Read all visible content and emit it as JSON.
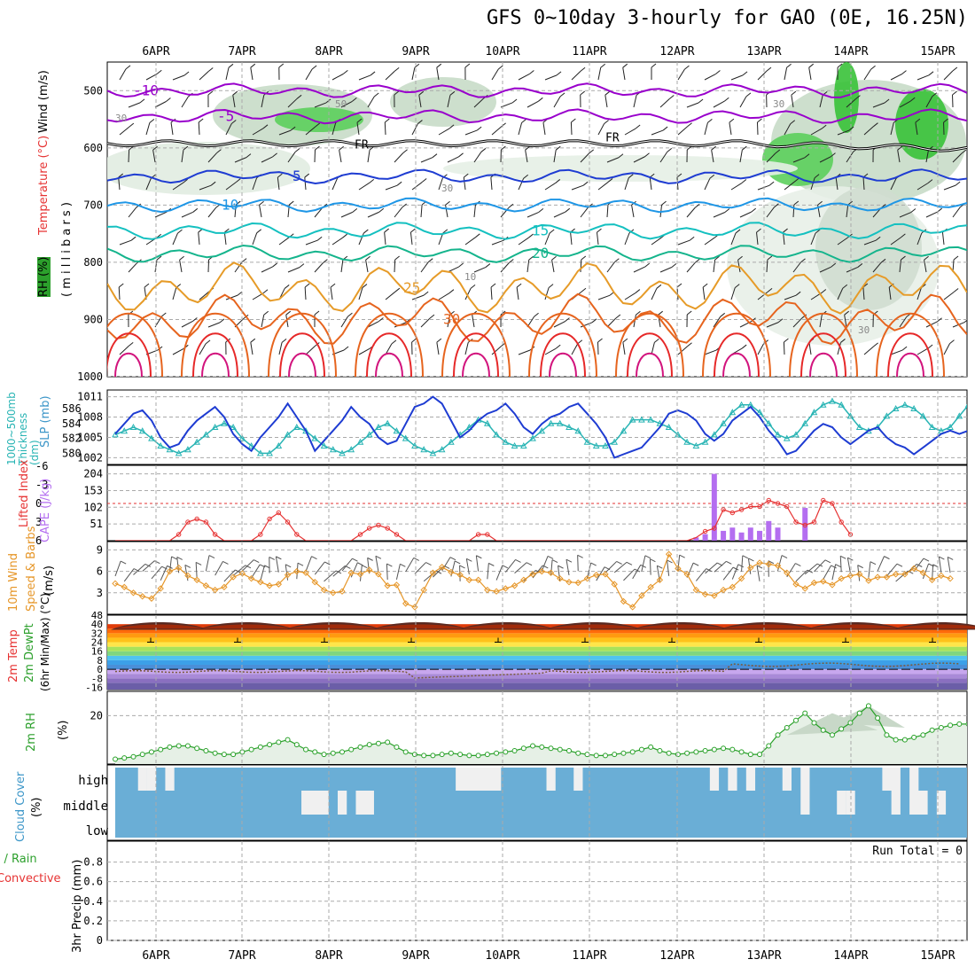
{
  "title": "GFS 0~10day 3-hourly for GAO (0E, 16.25N)",
  "top_dates": [
    "6APR",
    "7APR",
    "8APR",
    "9APR",
    "10APR",
    "11APR",
    "12APR",
    "13APR",
    "14APR",
    "15APR"
  ],
  "bottom_dates": [
    "6APR",
    "7APR",
    "8APR",
    "9APR",
    "10APR",
    "11APR",
    "12APR",
    "13APR",
    "14APR",
    "15APR"
  ],
  "left_labels": {
    "p1_wind": "Wind (m/s)",
    "p1_temp": "Temperature (°C)",
    "p1_rh": "RH (%)",
    "p1_mb": "( m i l l i b a r s )",
    "p2_thk": "1000~500mb Thickness (dm)",
    "p2_slp": "SLP (mb)",
    "p3_li": "Lifted Index",
    "p3_cape": "CAPE (J/kg)",
    "p4_a": "10m Wind",
    "p4_b": "Speed & Barbs",
    "p4_c": "(m/s)",
    "p5_a": "2m Temp",
    "p5_b": "2m DewPt",
    "p5_c": "(6hr Min/Max) (°C)",
    "p6_a": "2m RH",
    "p6_b": "(%)",
    "p7_a": "Cloud Cover",
    "p7_b": "(%)",
    "p8_a": "Total / Rain",
    "p8_b": "Convective",
    "p8_c": "3hr Precip (mm)"
  },
  "colors": {
    "temp_neg": "#9900cc",
    "temp_5": "#1e3cd2",
    "temp_10": "#1e96e6",
    "temp_15": "#14c0c0",
    "temp_20": "#14b48c",
    "temp_25": "#e69b28",
    "temp_30": "#e6641e",
    "temp_35": "#e62828",
    "temp_40": "#d2147d",
    "slp": "#1e3cd2",
    "thickness": "#28b4b4",
    "cape_bar": "#b46ef0",
    "lifted_index": "#e63232",
    "wind_speed": "#e69628",
    "rh": "#28a028",
    "rh_fill": "#e6f0e6",
    "cloud": "#6aaed6",
    "cloud_gap": "#f0f0f0",
    "label_red": "#e63232",
    "label_green": "#2ca02c",
    "label_blue": "#3c96c8",
    "label_purple": "#b46ef0",
    "label_cyan": "#28b4b4",
    "label_orange": "#e69628"
  },
  "chart_data": [
    {
      "type": "contour",
      "panel": "upper-air",
      "y_axis": "pressure (mb)",
      "ylim": [
        1000,
        450
      ],
      "yticks": [
        500,
        600,
        700,
        800,
        900,
        1000
      ],
      "temperature_contours": [
        {
          "value": -10,
          "label": "-10",
          "mean_mb": 500
        },
        {
          "value": -5,
          "label": "-5",
          "mean_mb": 545
        },
        {
          "value": 5,
          "label": "5",
          "mean_mb": 650
        },
        {
          "value": 10,
          "label": "10",
          "mean_mb": 700
        },
        {
          "value": 15,
          "label": "15",
          "mean_mb": 745
        },
        {
          "value": 20,
          "label": "20",
          "mean_mb": 785
        },
        {
          "value": 25,
          "label": "25",
          "mean_mb": 845
        },
        {
          "value": 30,
          "label": "30",
          "mean_mb": 900
        }
      ],
      "freezing_level_label": "FR",
      "freezing_level_mb": 592,
      "rh_labels": [
        "30",
        "50",
        "30",
        "10",
        "30",
        "30"
      ]
    },
    {
      "type": "line",
      "panel": "pressure",
      "slp_ylim": [
        1001,
        1012
      ],
      "slp_ticks": [
        1002,
        1005,
        1008,
        1011
      ],
      "thickness_ticks": [
        580,
        582,
        584,
        586
      ],
      "slp": [
        1005.5,
        1007.0,
        1008.5,
        1009.0,
        1007.5,
        1005.0,
        1003.5,
        1004.0,
        1006.0,
        1007.5,
        1008.5,
        1009.5,
        1008.0,
        1005.5,
        1004.0,
        1003.0,
        1005.0,
        1006.5,
        1008.0,
        1010.0,
        1008.0,
        1006.0,
        1003.0,
        1004.5,
        1006.0,
        1007.5,
        1009.5,
        1008.0,
        1007.0,
        1005.0,
        1004.0,
        1004.5,
        1007.0,
        1009.5,
        1010.0,
        1011.0,
        1010.0,
        1007.5,
        1005.0,
        1006.0,
        1007.5,
        1008.5,
        1009.0,
        1010.0,
        1008.5,
        1006.5,
        1005.5,
        1007.0,
        1008.0,
        1008.5,
        1009.5,
        1010.0,
        1008.5,
        1007.0,
        1005.0,
        1002.0,
        1002.5,
        1003.0,
        1003.5,
        1005.0,
        1006.5,
        1008.5,
        1009.0,
        1008.5,
        1007.5,
        1005.5,
        1004.5,
        1005.5,
        1007.5,
        1008.5,
        1009.5,
        1008.0,
        1006.0,
        1004.5,
        1002.5,
        1003.0,
        1004.5,
        1006.0,
        1007.0,
        1006.5,
        1005.0,
        1004.0,
        1005.0,
        1006.0,
        1006.5,
        1005.0,
        1004.0,
        1003.5,
        1002.5,
        1003.5,
        1004.5,
        1005.5,
        1006.0,
        1005.5,
        1006.0,
        1006.5,
        1005.5,
        1005.0,
        1006.0
      ],
      "thickness": [
        582.5,
        583.0,
        583.5,
        583.0,
        582.0,
        581.0,
        580.5,
        580.0,
        580.5,
        581.5,
        582.5,
        583.5,
        584.0,
        583.5,
        582.0,
        581.0,
        580.0,
        580.0,
        581.0,
        582.5,
        583.5,
        583.0,
        582.0,
        581.0,
        580.5,
        580.0,
        580.5,
        581.5,
        582.5,
        583.5,
        584.0,
        583.0,
        582.0,
        581.0,
        580.5,
        580.0,
        580.5,
        581.5,
        582.5,
        583.5,
        584.5,
        584.0,
        582.5,
        581.5,
        581.0,
        581.0,
        582.0,
        583.0,
        584.0,
        584.0,
        583.5,
        583.0,
        581.5,
        581.0,
        581.0,
        581.5,
        583.0,
        584.5,
        584.5,
        584.5,
        584.0,
        583.5,
        582.5,
        581.5,
        581.0,
        581.5,
        582.5,
        584.0,
        585.5,
        586.5,
        586.5,
        585.5,
        584.0,
        582.5,
        582.0,
        582.5,
        584.0,
        585.5,
        586.5,
        587.0,
        586.5,
        585.0,
        583.5,
        583.0,
        583.5,
        585.0,
        586.0,
        586.5,
        586.0,
        585.0,
        583.5,
        583.0,
        583.5,
        585.0,
        586.5,
        587.0,
        586.0,
        584.0,
        582.5
      ]
    },
    {
      "type": "bar",
      "panel": "instability",
      "cape_ticks": [
        51,
        102,
        153,
        204
      ],
      "li_ticks": [
        6,
        3,
        0,
        -3,
        -6
      ],
      "lifted_index_note": "0 reference line",
      "cape": [
        {
          "t": 64,
          "v": 10
        },
        {
          "t": 65,
          "v": 20
        },
        {
          "t": 66,
          "v": 204
        },
        {
          "t": 67,
          "v": 30
        },
        {
          "t": 68,
          "v": 40
        },
        {
          "t": 69,
          "v": 25
        },
        {
          "t": 70,
          "v": 40
        },
        {
          "t": 71,
          "v": 30
        },
        {
          "t": 72,
          "v": 60
        },
        {
          "t": 73,
          "v": 40
        },
        {
          "t": 76,
          "v": 100
        }
      ],
      "lifted_index": [
        6,
        6,
        6,
        6,
        6,
        6,
        6,
        5,
        3,
        2.5,
        3,
        5,
        6,
        6,
        6,
        6,
        5,
        2.5,
        1.5,
        3,
        5,
        6,
        6,
        6,
        6,
        6,
        6,
        5,
        4,
        3.5,
        4,
        5,
        6,
        6,
        6,
        6,
        6,
        6,
        6,
        6,
        5,
        5,
        6,
        6,
        6,
        6,
        6,
        6,
        6,
        6,
        6,
        6,
        6,
        6,
        6,
        6,
        6,
        6,
        6,
        6,
        6,
        6,
        6,
        6,
        5.5,
        4.5,
        4,
        1,
        1.5,
        1,
        0.5,
        0.5,
        -0.5,
        0,
        0.5,
        3,
        3.5,
        3,
        -0.5,
        0,
        3,
        5
      ]
    },
    {
      "type": "line",
      "panel": "10m-wind",
      "ylim": [
        0,
        9
      ],
      "yticks": [
        3,
        6,
        9
      ],
      "speed": [
        4.3,
        3.8,
        3.0,
        2.5,
        2.2,
        3.6,
        6.0,
        6.5,
        5.4,
        4.8,
        4.0,
        3.4,
        3.8,
        5.2,
        5.7,
        5.0,
        4.5,
        4.0,
        4.2,
        5.5,
        6.0,
        5.8,
        4.5,
        3.4,
        3.0,
        3.2,
        5.8,
        5.6,
        6.2,
        5.6,
        4.0,
        4.1,
        1.5,
        1.0,
        3.4,
        5.8,
        6.6,
        5.9,
        5.5,
        4.8,
        4.8,
        3.4,
        3.2,
        3.6,
        4.0,
        4.8,
        5.6,
        6.0,
        5.8,
        5.0,
        4.5,
        4.4,
        5.0,
        5.5,
        5.6,
        4.2,
        1.8,
        1.0,
        2.6,
        3.8,
        4.8,
        8.4,
        6.4,
        5.6,
        3.4,
        2.8,
        2.6,
        3.4,
        3.8,
        5.0,
        6.5,
        7.2,
        7.0,
        6.8,
        5.8,
        4.2,
        3.6,
        4.4,
        4.6,
        4.1,
        5.0,
        5.4,
        5.6,
        4.7,
        5.2,
        5.2,
        5.6,
        5.6,
        6.4,
        5.8,
        4.8,
        5.4,
        5.0
      ]
    },
    {
      "type": "area",
      "panel": "2m-temp",
      "yticks": [
        -16,
        -8,
        0,
        8,
        16,
        24,
        32,
        40,
        48
      ],
      "ylim": [
        -18,
        48
      ],
      "daily_min": [
        24,
        24,
        24,
        24,
        24,
        24,
        24,
        24,
        24,
        24
      ],
      "daily_max": [
        41,
        41,
        41,
        41,
        41,
        41,
        41,
        41,
        41,
        41
      ],
      "dewpoint_range": [
        -8,
        8
      ]
    },
    {
      "type": "area",
      "panel": "2m-rh",
      "yticks": [
        20
      ],
      "ylim": [
        0,
        30
      ],
      "rh": [
        2,
        2.5,
        3,
        4,
        5,
        6,
        7,
        7.5,
        7.5,
        6.5,
        5.5,
        4.5,
        4,
        4,
        5,
        6,
        7,
        8,
        9,
        10,
        8,
        6,
        5,
        4,
        4.5,
        5,
        6,
        7,
        8,
        8.5,
        9,
        7,
        5,
        4,
        3.5,
        3.5,
        4,
        4.5,
        4,
        3.5,
        3.5,
        4,
        4.5,
        5,
        5.5,
        6.5,
        7.5,
        7,
        6.5,
        6,
        5.5,
        4.5,
        4,
        3.5,
        3.5,
        4,
        4.5,
        5,
        6,
        7,
        5.5,
        4.5,
        4,
        4.5,
        5,
        5.5,
        6,
        6.5,
        6,
        5,
        4,
        4,
        7.5,
        12,
        15,
        18,
        21,
        17,
        14,
        12,
        14.5,
        17,
        21,
        24,
        19,
        12,
        10,
        10,
        11,
        12,
        14,
        15,
        16,
        16.5,
        16.5
      ]
    },
    {
      "type": "heatmap",
      "panel": "cloud-cover",
      "levels": [
        "high",
        "middle",
        "low"
      ],
      "high_gaps": [
        {
          "start": 3,
          "n": 1
        },
        {
          "start": 4,
          "n": 1
        },
        {
          "start": 6,
          "n": 1
        },
        {
          "start": 38,
          "n": 5
        },
        {
          "start": 48,
          "n": 1
        },
        {
          "start": 51,
          "n": 1
        },
        {
          "start": 66,
          "n": 1
        },
        {
          "start": 68,
          "n": 1
        },
        {
          "start": 70,
          "n": 1
        },
        {
          "start": 74,
          "n": 1
        },
        {
          "start": 76,
          "n": 1
        },
        {
          "start": 85,
          "n": 2
        },
        {
          "start": 88,
          "n": 1
        }
      ],
      "middle_gaps": [
        {
          "start": 21,
          "n": 3
        },
        {
          "start": 25,
          "n": 1
        },
        {
          "start": 27,
          "n": 2
        },
        {
          "start": 76,
          "n": 1
        },
        {
          "start": 80,
          "n": 1
        },
        {
          "start": 81,
          "n": 1
        },
        {
          "start": 86,
          "n": 1
        },
        {
          "start": 88,
          "n": 2
        },
        {
          "start": 91,
          "n": 1
        }
      ]
    },
    {
      "type": "bar",
      "panel": "precip",
      "ylim": [
        0,
        1
      ],
      "yticks": [
        0,
        0.2,
        0.4,
        0.6,
        0.8
      ],
      "run_total_label": "Run Total = 0",
      "values": []
    }
  ]
}
